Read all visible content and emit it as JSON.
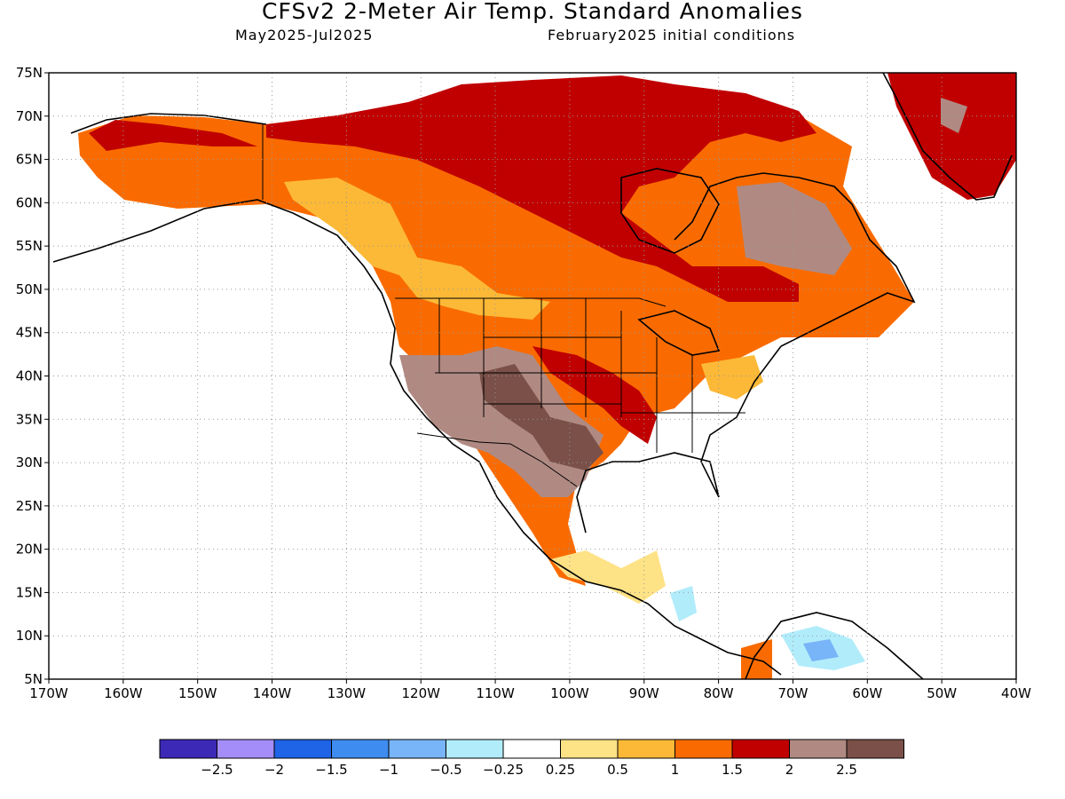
{
  "header": {
    "title": "CFSv2 2-Meter Air Temp. Standard Anomalies",
    "subtitle_left": "May2025-Jul2025",
    "subtitle_right": "February2025 initial conditions"
  },
  "map": {
    "lat_labels": [
      "75N",
      "70N",
      "65N",
      "60N",
      "55N",
      "50N",
      "45N",
      "40N",
      "35N",
      "30N",
      "25N",
      "20N",
      "15N",
      "10N",
      "5N"
    ],
    "lon_labels": [
      "170W",
      "160W",
      "150W",
      "140W",
      "130W",
      "120W",
      "110W",
      "100W",
      "90W",
      "80W",
      "70W",
      "60W",
      "50W",
      "40W"
    ],
    "lat_range": [
      5,
      75
    ],
    "lon_range": [
      -170,
      -40
    ],
    "grid": "dotted"
  },
  "legend": {
    "colors": [
      "#3c29b5",
      "#a48df8",
      "#1f63e6",
      "#3e8cef",
      "#78b4f8",
      "#b1ecfb",
      "#ffffff",
      "#fee286",
      "#fcb937",
      "#f96b00",
      "#c00000",
      "#b08a82",
      "#7a5048"
    ],
    "labels": [
      "-2.5",
      "-2",
      "-1.5",
      "-1",
      "-0.5",
      "-0.25",
      "0.25",
      "0.5",
      "1",
      "1.5",
      "2",
      "2.5"
    ]
  },
  "colors": {
    "land": "#ffffff",
    "coast": "#000000",
    "grid": "#999999"
  }
}
